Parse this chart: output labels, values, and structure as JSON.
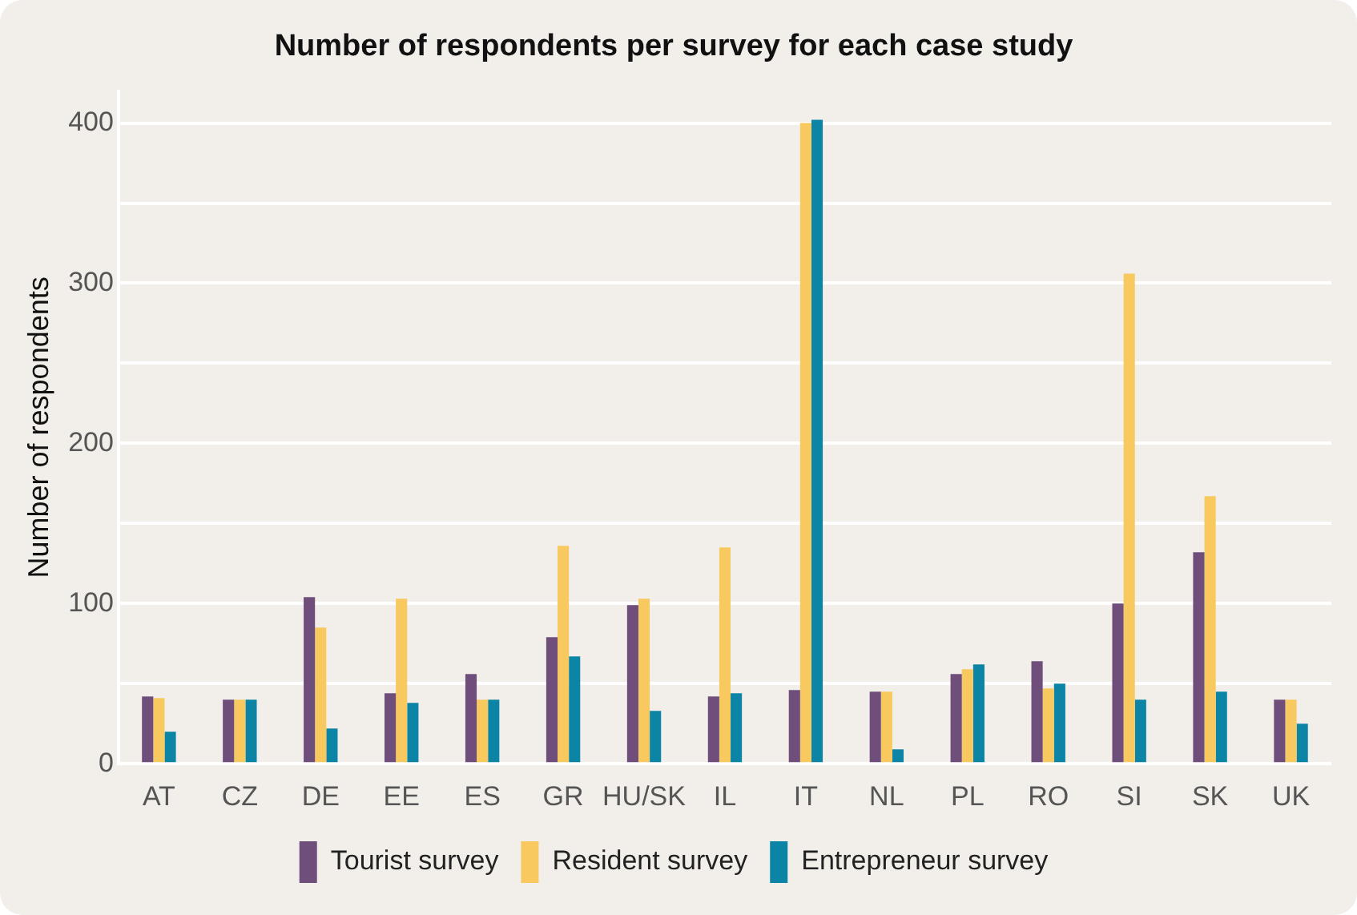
{
  "chart_data": {
    "type": "bar",
    "title": "Number of respondents per survey for each case study",
    "ylabel": "Number of respondents",
    "categories": [
      "AT",
      "CZ",
      "DE",
      "EE",
      "ES",
      "GR",
      "HU/SK",
      "IL",
      "IT",
      "NL",
      "PL",
      "RO",
      "SI",
      "SK",
      "UK"
    ],
    "series": [
      {
        "name": "Tourist survey",
        "color": "#6f4e7c",
        "values": [
          42,
          40,
          104,
          44,
          56,
          79,
          99,
          42,
          46,
          45,
          56,
          64,
          100,
          132,
          40
        ]
      },
      {
        "name": "Resident survey",
        "color": "#f7c95e",
        "values": [
          41,
          40,
          85,
          103,
          40,
          136,
          103,
          135,
          400,
          45,
          59,
          47,
          306,
          167,
          40
        ]
      },
      {
        "name": "Entrepreneur survey",
        "color": "#0b84a5",
        "values": [
          20,
          40,
          22,
          38,
          40,
          67,
          33,
          44,
          402,
          9,
          62,
          50,
          40,
          45,
          25
        ]
      }
    ],
    "ylim": [
      0,
      420
    ],
    "yticks": [
      0,
      {
        "value": 50,
        "label": null
      },
      100,
      {
        "value": 150,
        "label": null
      },
      200,
      {
        "value": 250,
        "label": null
      },
      300,
      {
        "value": 350,
        "label": null
      },
      400
    ],
    "grid": "y",
    "legend": "bottom"
  }
}
